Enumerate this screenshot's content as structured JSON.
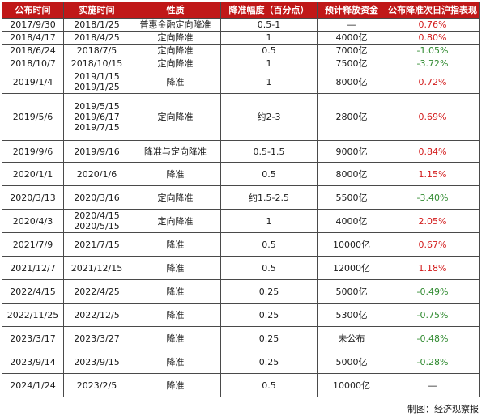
{
  "table": {
    "headers": [
      "公布时间",
      "实施时间",
      "性质",
      "降准幅度（百分点）",
      "预计释放资金",
      "公布降准次日沪指表现"
    ],
    "rows": [
      {
        "announce": "2017/9/30",
        "implement": [
          "2018/1/25"
        ],
        "nature": "普惠金融定向降准",
        "cut": "0.5-1",
        "funds": "—",
        "perf": "0.76%",
        "trend": "pos"
      },
      {
        "announce": "2018/4/17",
        "implement": [
          "2018/4/25"
        ],
        "nature": "定向降准",
        "cut": "1",
        "funds": "4000亿",
        "perf": "0.80%",
        "trend": "pos"
      },
      {
        "announce": "2018/6/24",
        "implement": [
          "2018/7/5"
        ],
        "nature": "定向降准",
        "cut": "0.5",
        "funds": "7000亿",
        "perf": "-1.05%",
        "trend": "neg"
      },
      {
        "announce": "2018/10/7",
        "implement": [
          "2018/10/15"
        ],
        "nature": "定向降准",
        "cut": "1",
        "funds": "7500亿",
        "perf": "-3.72%",
        "trend": "neg"
      },
      {
        "announce": "2019/1/4",
        "implement": [
          "2019/1/15",
          "2019/1/25"
        ],
        "nature": "降准",
        "cut": "1",
        "funds": "8000亿",
        "perf": "0.72%",
        "trend": "pos"
      },
      {
        "announce": "2019/5/6",
        "implement": [
          "2019/5/15",
          "2019/6/17",
          "2019/7/15"
        ],
        "nature": "定向降准",
        "cut": "约2-3",
        "funds": "2800亿",
        "perf": "0.69%",
        "trend": "pos"
      },
      {
        "announce": "2019/9/6",
        "implement": [
          "2019/9/16"
        ],
        "nature": "降准与定向降准",
        "cut": "0.5-1.5",
        "funds": "9000亿",
        "perf": "0.84%",
        "trend": "pos"
      },
      {
        "announce": "2020/1/1",
        "implement": [
          "2020/1/6"
        ],
        "nature": "降准",
        "cut": "0.5",
        "funds": "8000亿",
        "perf": "1.15%",
        "trend": "pos"
      },
      {
        "announce": "2020/3/13",
        "implement": [
          "2020/3/16"
        ],
        "nature": "定向降准",
        "cut": "约1.5-2.5",
        "funds": "5500亿",
        "perf": "-3.40%",
        "trend": "neg"
      },
      {
        "announce": "2020/4/3",
        "implement": [
          "2020/4/15",
          "2020/5/15"
        ],
        "nature": "定向降准",
        "cut": "1",
        "funds": "4000亿",
        "perf": "2.05%",
        "trend": "pos"
      },
      {
        "announce": "2021/7/9",
        "implement": [
          "2021/7/15"
        ],
        "nature": "降准",
        "cut": "0.5",
        "funds": "10000亿",
        "perf": "0.67%",
        "trend": "pos"
      },
      {
        "announce": "2021/12/7",
        "implement": [
          "2021/12/15"
        ],
        "nature": "降准",
        "cut": "0.5",
        "funds": "12000亿",
        "perf": "1.18%",
        "trend": "pos"
      },
      {
        "announce": "2022/4/15",
        "implement": [
          "2022/4/25"
        ],
        "nature": "降准",
        "cut": "0.25",
        "funds": "5000亿",
        "perf": "-0.49%",
        "trend": "neg"
      },
      {
        "announce": "2022/11/25",
        "implement": [
          "2022/12/5"
        ],
        "nature": "降准",
        "cut": "0.25",
        "funds": "5300亿",
        "perf": "-0.75%",
        "trend": "neg"
      },
      {
        "announce": "2023/3/17",
        "implement": [
          "2023/3/27"
        ],
        "nature": "降准",
        "cut": "0.25",
        "funds": "未公布",
        "perf": "-0.48%",
        "trend": "neg"
      },
      {
        "announce": "2023/9/14",
        "implement": [
          "2023/9/15"
        ],
        "nature": "降准",
        "cut": "0.25",
        "funds": "5000亿",
        "perf": "-0.28%",
        "trend": "neg"
      },
      {
        "announce": "2024/1/24",
        "implement": [
          "2023/2/5"
        ],
        "nature": "降准",
        "cut": "0.5",
        "funds": "10000亿",
        "perf": "—",
        "trend": "neu"
      }
    ]
  },
  "credit": "制图：经济观察报"
}
